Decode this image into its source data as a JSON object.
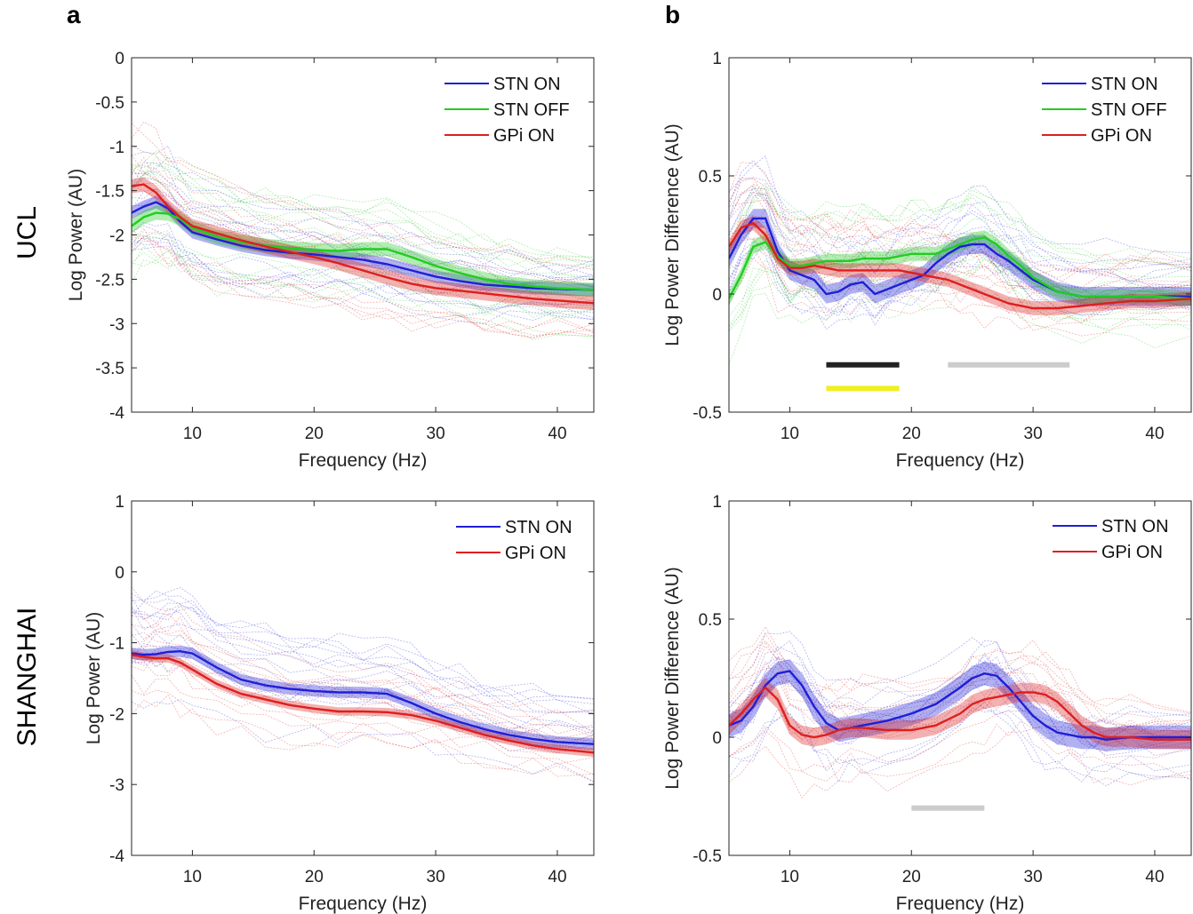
{
  "figure": {
    "panel_letters": [
      "a",
      "b"
    ],
    "row_labels": [
      "UCL",
      "SHANGHAI"
    ]
  },
  "colors": {
    "STN ON": "#1f1fd6",
    "STN OFF": "#22cc22",
    "GPi ON": "#dd1f1f",
    "bar_black": "#222222",
    "bar_yellow": "#f2ee22",
    "bar_gray": "#cccccc"
  },
  "chart_data": [
    {
      "id": "a_ucl",
      "type": "line",
      "xlabel": "Frequency (Hz)",
      "ylabel": "Log Power (AU)",
      "xlim": [
        5,
        43
      ],
      "ylim": [
        -4,
        0
      ],
      "xticks": [
        10,
        20,
        30,
        40
      ],
      "yticks": [
        0,
        -0.5,
        -1,
        -1.5,
        -2,
        -2.5,
        -3,
        -3.5,
        -4
      ],
      "ytick_labels": [
        "0",
        "-0.5",
        "-1",
        "-1.5",
        "-2",
        "-2.5",
        "-3",
        "-3.5",
        "-4"
      ],
      "legend": [
        "STN ON",
        "STN OFF",
        "GPi ON"
      ],
      "x": [
        5,
        6,
        7,
        8,
        9,
        10,
        12,
        14,
        16,
        18,
        20,
        22,
        24,
        26,
        28,
        30,
        32,
        34,
        36,
        38,
        40,
        43
      ],
      "series": [
        {
          "name": "STN ON",
          "values": [
            -1.75,
            -1.68,
            -1.63,
            -1.7,
            -1.85,
            -1.97,
            -2.05,
            -2.12,
            -2.17,
            -2.2,
            -2.22,
            -2.25,
            -2.28,
            -2.33,
            -2.4,
            -2.47,
            -2.52,
            -2.56,
            -2.58,
            -2.6,
            -2.61,
            -2.62
          ],
          "band": 0.07
        },
        {
          "name": "STN OFF",
          "values": [
            -1.9,
            -1.8,
            -1.75,
            -1.76,
            -1.82,
            -1.92,
            -2.02,
            -2.08,
            -2.12,
            -2.15,
            -2.17,
            -2.18,
            -2.16,
            -2.16,
            -2.25,
            -2.35,
            -2.43,
            -2.5,
            -2.55,
            -2.58,
            -2.6,
            -2.62
          ],
          "band": 0.08
        },
        {
          "name": "GPi ON",
          "values": [
            -1.45,
            -1.43,
            -1.52,
            -1.68,
            -1.8,
            -1.9,
            -1.98,
            -2.06,
            -2.13,
            -2.19,
            -2.25,
            -2.32,
            -2.4,
            -2.48,
            -2.55,
            -2.6,
            -2.63,
            -2.66,
            -2.69,
            -2.72,
            -2.74,
            -2.77
          ],
          "band": 0.08
        }
      ]
    },
    {
      "id": "b_ucl",
      "type": "line",
      "xlabel": "Frequency (Hz)",
      "ylabel": "Log Power Difference (AU)",
      "xlim": [
        5,
        43
      ],
      "ylim": [
        -0.5,
        1
      ],
      "xticks": [
        10,
        20,
        30,
        40
      ],
      "yticks": [
        1,
        0.5,
        0,
        -0.5
      ],
      "ytick_labels": [
        "1",
        "0.5",
        "0",
        "-0.5"
      ],
      "legend": [
        "STN ON",
        "STN OFF",
        "GPi ON"
      ],
      "x": [
        5,
        6,
        7,
        8,
        9,
        10,
        11,
        12,
        13,
        14,
        15,
        16,
        17,
        18,
        19,
        20,
        21,
        22,
        23,
        24,
        25,
        26,
        27,
        28,
        29,
        30,
        32,
        34,
        36,
        38,
        40,
        43
      ],
      "series": [
        {
          "name": "STN ON",
          "values": [
            0.15,
            0.25,
            0.32,
            0.32,
            0.18,
            0.1,
            0.08,
            0.06,
            0.0,
            0.01,
            0.04,
            0.05,
            0.0,
            0.02,
            0.04,
            0.06,
            0.08,
            0.13,
            0.17,
            0.2,
            0.21,
            0.21,
            0.17,
            0.14,
            0.1,
            0.06,
            0.01,
            -0.01,
            -0.01,
            -0.01,
            -0.01,
            -0.01
          ],
          "band": 0.04
        },
        {
          "name": "STN OFF",
          "values": [
            -0.02,
            0.08,
            0.2,
            0.22,
            0.16,
            0.12,
            0.12,
            0.13,
            0.14,
            0.14,
            0.14,
            0.15,
            0.15,
            0.15,
            0.16,
            0.17,
            0.17,
            0.17,
            0.19,
            0.21,
            0.23,
            0.24,
            0.21,
            0.16,
            0.12,
            0.07,
            0.01,
            -0.01,
            -0.01,
            -0.01,
            -0.01,
            -0.02
          ],
          "band": 0.03
        },
        {
          "name": "GPi ON",
          "values": [
            0.2,
            0.28,
            0.3,
            0.25,
            0.15,
            0.11,
            0.11,
            0.12,
            0.11,
            0.1,
            0.1,
            0.1,
            0.1,
            0.1,
            0.1,
            0.09,
            0.08,
            0.07,
            0.06,
            0.04,
            0.02,
            0.0,
            -0.02,
            -0.04,
            -0.05,
            -0.06,
            -0.06,
            -0.05,
            -0.04,
            -0.03,
            -0.03,
            -0.02
          ],
          "band": 0.03
        }
      ],
      "significance_bars": [
        {
          "color": "bar_black",
          "x": [
            13,
            19
          ],
          "y": -0.3
        },
        {
          "color": "bar_yellow",
          "x": [
            13,
            19
          ],
          "y": -0.4
        },
        {
          "color": "bar_gray",
          "x": [
            23,
            33
          ],
          "y": -0.3
        }
      ]
    },
    {
      "id": "a_shanghai",
      "type": "line",
      "xlabel": "Frequency (Hz)",
      "ylabel": "Log Power (AU)",
      "xlim": [
        5,
        43
      ],
      "ylim": [
        -4,
        1
      ],
      "xticks": [
        10,
        20,
        30,
        40
      ],
      "yticks": [
        1,
        0,
        -1,
        -2,
        -3,
        -4
      ],
      "ytick_labels": [
        "1",
        "0",
        "-1",
        "-2",
        "-3",
        "-4"
      ],
      "legend": [
        "STN ON",
        "GPi ON"
      ],
      "x": [
        5,
        6,
        7,
        8,
        9,
        10,
        12,
        14,
        16,
        18,
        20,
        22,
        24,
        26,
        28,
        30,
        32,
        34,
        36,
        38,
        40,
        43
      ],
      "series": [
        {
          "name": "STN ON",
          "values": [
            -1.15,
            -1.17,
            -1.16,
            -1.13,
            -1.12,
            -1.15,
            -1.35,
            -1.52,
            -1.6,
            -1.65,
            -1.68,
            -1.7,
            -1.7,
            -1.72,
            -1.85,
            -2.0,
            -2.12,
            -2.22,
            -2.3,
            -2.36,
            -2.4,
            -2.43
          ],
          "band": 0.08
        },
        {
          "name": "GPi ON",
          "values": [
            -1.17,
            -1.2,
            -1.22,
            -1.22,
            -1.28,
            -1.38,
            -1.58,
            -1.72,
            -1.8,
            -1.88,
            -1.93,
            -1.97,
            -1.97,
            -1.98,
            -2.02,
            -2.1,
            -2.2,
            -2.3,
            -2.38,
            -2.45,
            -2.5,
            -2.55
          ],
          "band": 0.06
        }
      ]
    },
    {
      "id": "b_shanghai",
      "type": "line",
      "xlabel": "Frequency (Hz)",
      "ylabel": "Log Power Difference (AU)",
      "xlim": [
        5,
        43
      ],
      "ylim": [
        -0.5,
        1
      ],
      "xticks": [
        10,
        20,
        30,
        40
      ],
      "yticks": [
        1,
        0.5,
        0,
        -0.5
      ],
      "ytick_labels": [
        "1",
        "0.5",
        "0",
        "-0.5"
      ],
      "legend": [
        "STN ON",
        "GPi ON"
      ],
      "x": [
        5,
        6,
        7,
        8,
        9,
        10,
        11,
        12,
        13,
        14,
        15,
        16,
        18,
        20,
        22,
        24,
        25,
        26,
        27,
        28,
        29,
        30,
        31,
        32,
        33,
        34,
        35,
        36,
        38,
        40,
        43
      ],
      "series": [
        {
          "name": "STN ON",
          "values": [
            0.05,
            0.07,
            0.13,
            0.22,
            0.27,
            0.28,
            0.22,
            0.13,
            0.06,
            0.03,
            0.04,
            0.05,
            0.07,
            0.1,
            0.14,
            0.21,
            0.25,
            0.27,
            0.26,
            0.21,
            0.15,
            0.09,
            0.05,
            0.02,
            0.01,
            0.0,
            0.0,
            -0.01,
            0.0,
            0.0,
            0.0
          ],
          "band": 0.05
        },
        {
          "name": "GPi ON",
          "values": [
            0.05,
            0.1,
            0.16,
            0.21,
            0.16,
            0.05,
            0.01,
            0.0,
            0.01,
            0.03,
            0.04,
            0.04,
            0.03,
            0.03,
            0.05,
            0.1,
            0.14,
            0.16,
            0.17,
            0.18,
            0.19,
            0.19,
            0.18,
            0.15,
            0.1,
            0.05,
            0.02,
            0.0,
            0.0,
            -0.01,
            -0.01
          ],
          "band": 0.04
        }
      ],
      "significance_bars": [
        {
          "color": "bar_gray",
          "x": [
            20,
            26
          ],
          "y": -0.3
        }
      ]
    }
  ]
}
